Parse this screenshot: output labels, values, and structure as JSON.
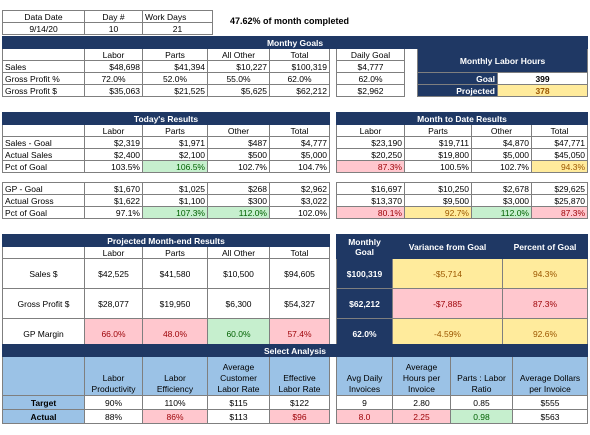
{
  "header": {
    "date_label": "Data Date",
    "date": "9/14/20",
    "day_label": "Day #",
    "day": "10",
    "workdays_label": "Work Days",
    "workdays": "21",
    "month_completed": "47.62%",
    "month_completed_text": "of month completed"
  },
  "monthly_goals": {
    "title": "Monthy Goals",
    "cols": [
      "",
      "Labor",
      "Parts",
      "All Other",
      "Total"
    ],
    "rows": [
      [
        "Sales",
        "$48,698",
        "$41,394",
        "$10,227",
        "$100,319"
      ],
      [
        "Gross Profit %",
        "72.0%",
        "52.0%",
        "55.0%",
        "62.0%"
      ],
      [
        "Gross Profit $",
        "$35,063",
        "$21,525",
        "$5,625",
        "$62,212"
      ]
    ],
    "daily_goal_label": "Daily Goal",
    "daily_goal": [
      "$4,777",
      "62.0%",
      "$2,962"
    ]
  },
  "labor_hours": {
    "title": "Monthly Labor Hours",
    "goal_label": "Goal",
    "goal": "399",
    "projected_label": "Projected",
    "projected": "378"
  },
  "todays_results": {
    "title": "Today's Results",
    "cols": [
      "",
      "Labor",
      "Parts",
      "Other",
      "Total"
    ],
    "sales_rows": [
      [
        "Sales - Goal",
        "$2,319",
        "$1,971",
        "$487",
        "$4,777"
      ],
      [
        "Actual Sales",
        "$2,400",
        "$2,100",
        "$500",
        "$5,000"
      ],
      [
        "Pct of Goal",
        "103.5%",
        "106.5%",
        "102.7%",
        "104.7%"
      ]
    ],
    "gp_rows": [
      [
        "GP - Goal",
        "$1,670",
        "$1,025",
        "$268",
        "$2,962"
      ],
      [
        "Actual Gross",
        "$1,622",
        "$1,100",
        "$300",
        "$3,022"
      ],
      [
        "Pct of Goal",
        "97.1%",
        "107.3%",
        "112.0%",
        "102.0%"
      ]
    ]
  },
  "mtd_results": {
    "title": "Month to Date Results",
    "cols": [
      "Labor",
      "Parts",
      "Other",
      "Total"
    ],
    "sales_rows": [
      [
        "$23,190",
        "$19,711",
        "$4,870",
        "$47,771"
      ],
      [
        "$20,250",
        "$19,800",
        "$5,000",
        "$45,050"
      ],
      [
        "87.3%",
        "100.5%",
        "102.7%",
        "94.3%"
      ]
    ],
    "gp_rows": [
      [
        "$16,697",
        "$10,250",
        "$2,678",
        "$29,625"
      ],
      [
        "$13,370",
        "$9,500",
        "$3,000",
        "$25,870"
      ],
      [
        "80.1%",
        "92.7%",
        "112.0%",
        "87.3%"
      ]
    ]
  },
  "projected": {
    "title": "Projected Month-end Results",
    "cols": [
      "",
      "Labor",
      "Parts",
      "All Other",
      "Total"
    ],
    "rows": [
      [
        "Sales $",
        "$42,525",
        "$41,580",
        "$10,500",
        "$94,605"
      ],
      [
        "Gross Profit $",
        "$28,077",
        "$19,950",
        "$6,300",
        "$54,327"
      ],
      [
        "GP Margin",
        "66.0%",
        "48.0%",
        "60.0%",
        "57.4%"
      ]
    ]
  },
  "variance": {
    "monthly_goal_label": "Monthly Goal",
    "variance_label": "Variance from Goal",
    "percent_label": "Percent of Goal",
    "rows": [
      [
        "$100,319",
        "-$5,714",
        "94.3%"
      ],
      [
        "$62,212",
        "-$7,885",
        "87.3%"
      ],
      [
        "62.0%",
        "-4.59%",
        "92.6%"
      ]
    ]
  },
  "select_analysis": {
    "title": "Select Analysis",
    "cols": [
      "",
      "Labor Productivity",
      "Labor Efficiency",
      "Average Customer Labor Rate",
      "Effective Labor Rate",
      "Avg Daily Invoices",
      "Average Hours per Invoice",
      "Parts : Labor Ratio",
      "Average Dollars per Invoice"
    ],
    "target": [
      "Target",
      "90%",
      "110%",
      "$115",
      "$122",
      "9",
      "2.80",
      "0.85",
      "$555"
    ],
    "actual": [
      "Actual",
      "88%",
      "86%",
      "$113",
      "$96",
      "8.0",
      "2.25",
      "0.98",
      "$563"
    ]
  },
  "colors": {
    "navy": "#1f3864",
    "green": "#c6efce",
    "red": "#ffc7ce",
    "yellow": "#ffeb9c",
    "blue": "#9bc2e6"
  }
}
